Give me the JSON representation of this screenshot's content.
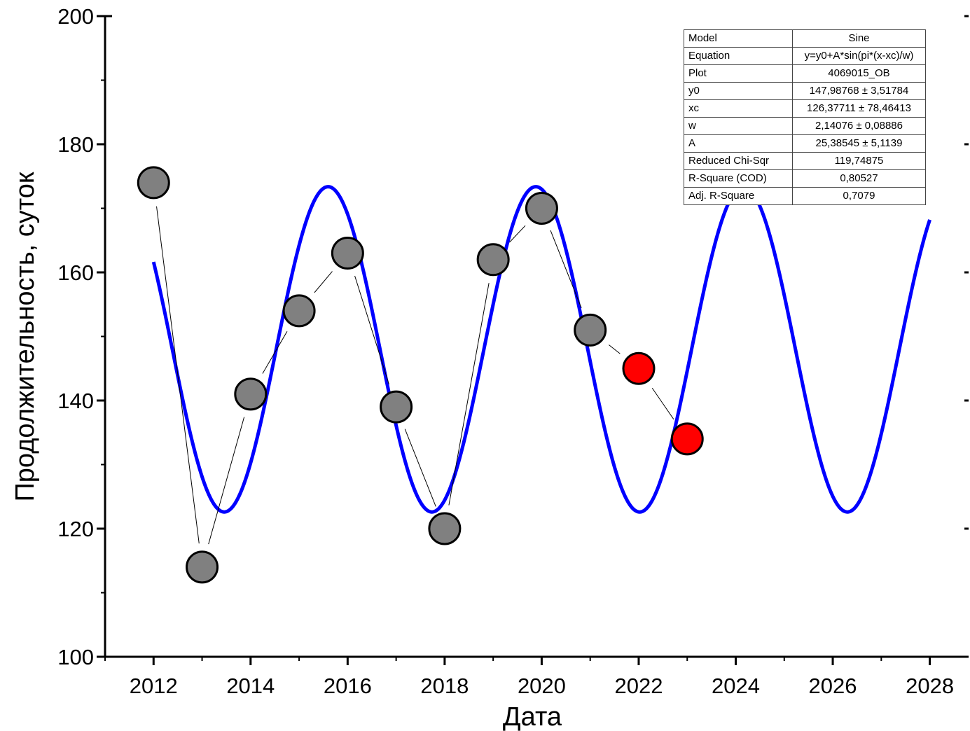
{
  "chart_data": {
    "type": "scatter",
    "xlabel": "Дата",
    "ylabel": "Продолжительность, суток",
    "xlim": [
      2011,
      2028.8
    ],
    "ylim": [
      100,
      200
    ],
    "xticks": [
      2012,
      2014,
      2016,
      2018,
      2020,
      2022,
      2024,
      2026,
      2028
    ],
    "yticks": [
      100,
      120,
      140,
      160,
      180,
      200
    ],
    "grid": false,
    "series": [
      {
        "kind": "markers-with-line",
        "color": "#808080",
        "x": [
          2012,
          2013,
          2014,
          2015,
          2016,
          2017,
          2018,
          2019,
          2020,
          2021
        ],
        "y": [
          174,
          114,
          141,
          154,
          163,
          139,
          120,
          162,
          170,
          151
        ]
      },
      {
        "kind": "markers-with-line",
        "color": "#ff0000",
        "x": [
          2022,
          2023
        ],
        "y": [
          145,
          134
        ]
      },
      {
        "kind": "fit-curve",
        "color": "#0000ff",
        "x_range": [
          2012,
          2028
        ],
        "model": {
          "y0": 147.98768,
          "xc": 126.37711,
          "w": 2.14076,
          "A": 25.38545
        }
      }
    ],
    "fit_table": [
      {
        "key": "Model",
        "value": "Sine"
      },
      {
        "key": "Equation",
        "value": "y=y0+A*sin(pi*(x-xc)/w)"
      },
      {
        "key": "Plot",
        "value": "4069015_OB"
      },
      {
        "key": "y0",
        "value": "147,98768 ± 3,51784"
      },
      {
        "key": "xc",
        "value": "126,37711 ± 78,46413"
      },
      {
        "key": "w",
        "value": "2,14076 ± 0,08886"
      },
      {
        "key": "A",
        "value": "25,38545 ± 5,1139"
      },
      {
        "key": "Reduced Chi-Sqr",
        "value": "119,74875"
      },
      {
        "key": "R-Square (COD)",
        "value": "0,80527"
      },
      {
        "key": "Adj. R-Square",
        "value": "0,7079"
      }
    ]
  }
}
